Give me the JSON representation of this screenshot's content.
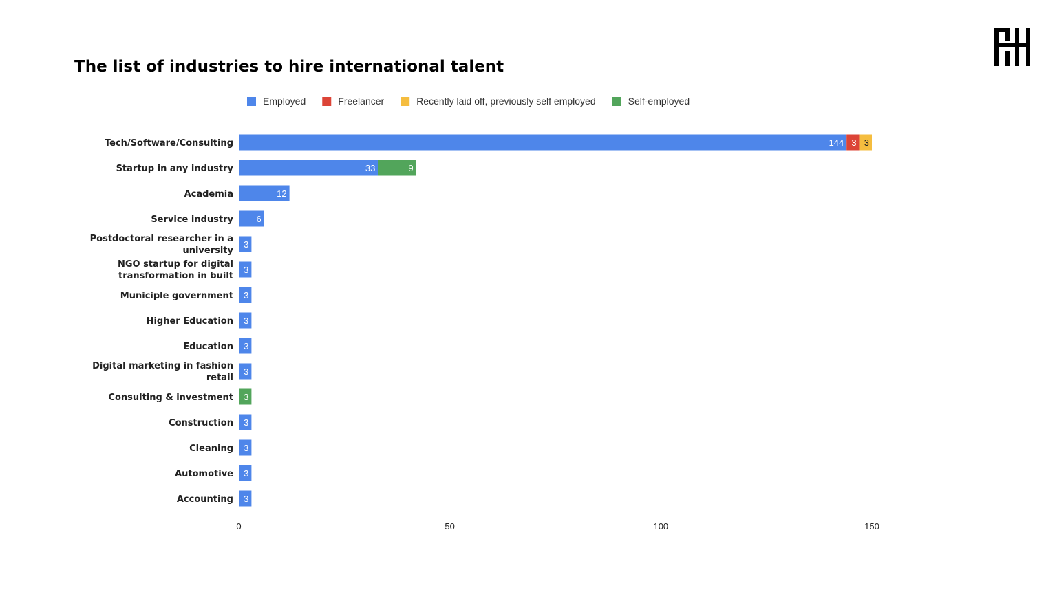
{
  "logo": {
    "icon": "hh-monogram-logo",
    "color": "#000000"
  },
  "chart_data": {
    "type": "bar",
    "orientation": "horizontal",
    "stacked": true,
    "title": "The list of industries to hire international talent",
    "xlabel": "",
    "ylabel": "",
    "xlim": [
      0,
      150
    ],
    "xticks": [
      0,
      50,
      100,
      150
    ],
    "grid": false,
    "legend_position": "top",
    "categories": [
      "Tech/Software/Consulting",
      "Startup in any industry",
      "Academia",
      "Service industry",
      "Postdoctoral researcher in a university",
      "NGO startup for digital transformation in built",
      "Municiple government",
      "Higher Education",
      "Education",
      "Digital marketing in fashion retail",
      "Consulting & investment",
      "Construction",
      "Cleaning",
      "Automotive",
      "Accounting"
    ],
    "series": [
      {
        "name": "Employed",
        "color": "#4e86ea",
        "label_color": "#ffffff",
        "values": [
          144,
          33,
          12,
          6,
          3,
          3,
          3,
          3,
          3,
          3,
          0,
          3,
          3,
          3,
          3
        ]
      },
      {
        "name": "Freelancer",
        "color": "#dc4437",
        "label_color": "#ffffff",
        "values": [
          3,
          0,
          0,
          0,
          0,
          0,
          0,
          0,
          0,
          0,
          0,
          0,
          0,
          0,
          0
        ]
      },
      {
        "name": "Recently laid off, previously self employed",
        "color": "#f5bd3f",
        "label_color": "#222222",
        "values": [
          3,
          0,
          0,
          0,
          0,
          0,
          0,
          0,
          0,
          0,
          0,
          0,
          0,
          0,
          0
        ]
      },
      {
        "name": "Self-employed",
        "color": "#52a55b",
        "label_color": "#ffffff",
        "values": [
          0,
          9,
          0,
          0,
          0,
          0,
          0,
          0,
          0,
          0,
          3,
          0,
          0,
          0,
          0
        ]
      }
    ]
  }
}
